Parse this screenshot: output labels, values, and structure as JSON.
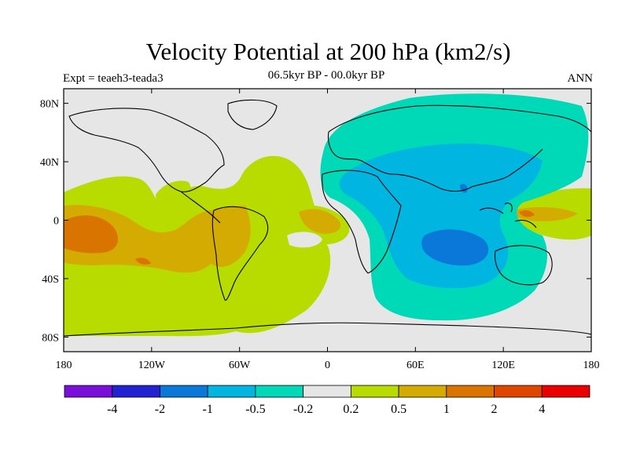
{
  "title": "Velocity Potential at 200 hPa (km2/s)",
  "subtitle": "06.5kyr BP - 00.0kyr BP",
  "left_label": "Expt = teaeh3-teada3",
  "right_label": "ANN",
  "colors": {
    "background": "#ffffff",
    "neutral": "#e6e6e6",
    "land": "#000000"
  },
  "chart_data": {
    "type": "heatmap",
    "projection": "cylindrical-equidistant",
    "xlim": [
      -180,
      180
    ],
    "ylim": [
      -90,
      90
    ],
    "lat_ticks": [
      {
        "value": 80,
        "label": "80N"
      },
      {
        "value": 40,
        "label": "40N"
      },
      {
        "value": 0,
        "label": "0"
      },
      {
        "value": -40,
        "label": "40S"
      },
      {
        "value": -80,
        "label": "80S"
      }
    ],
    "lon_ticks": [
      {
        "value": -180,
        "label": "180"
      },
      {
        "value": -120,
        "label": "120W"
      },
      {
        "value": -60,
        "label": "60W"
      },
      {
        "value": 0,
        "label": "0"
      },
      {
        "value": 60,
        "label": "60E"
      },
      {
        "value": 120,
        "label": "120E"
      },
      {
        "value": 180,
        "label": "180"
      }
    ],
    "colorbar": {
      "colors": [
        "#7a0fd9",
        "#2222d2",
        "#0a78d8",
        "#00b5e0",
        "#00d9b8",
        "#e6e6e6",
        "#b8dc00",
        "#d4ab00",
        "#d97400",
        "#df4600",
        "#ea0000"
      ],
      "labels": [
        "-4",
        "-2",
        "-1",
        "-0.5",
        "-0.2",
        "0.2",
        "0.5",
        "1",
        "2",
        "4"
      ]
    }
  }
}
